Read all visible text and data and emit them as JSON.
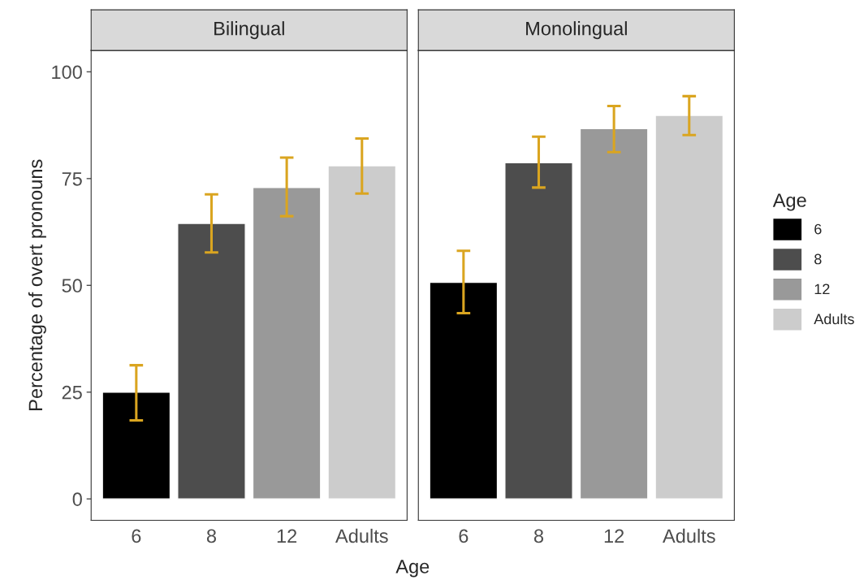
{
  "chart_data": [
    {
      "type": "bar",
      "title": "Bilingual",
      "ylabel": "Percentage of overt pronouns",
      "xlabel": "Age",
      "categories": [
        "6",
        "8",
        "12",
        "Adults"
      ],
      "series": [
        {
          "color": "#000000",
          "values": [
            25,
            null,
            null,
            null
          ],
          "errors": [
            [
              18.4,
              31.3
            ],
            null,
            null,
            null
          ]
        },
        {
          "color": "#4d4d4d",
          "values": [
            null,
            64.5,
            null,
            null
          ],
          "errors": [
            null,
            [
              57.7,
              71.3
            ],
            null,
            null
          ]
        },
        {
          "color": "#999999",
          "values": [
            null,
            null,
            72.9,
            null
          ],
          "errors": [
            null,
            null,
            [
              66.2,
              79.9
            ],
            null
          ]
        },
        {
          "color": "#cccccc",
          "values": [
            null,
            null,
            null,
            78.0
          ],
          "errors": [
            null,
            null,
            null,
            [
              71.5,
              84.4
            ]
          ]
        }
      ],
      "ylim": [
        -5,
        105
      ],
      "yticks": [
        0,
        25,
        50,
        75,
        100
      ]
    },
    {
      "type": "bar",
      "title": "Monolingual",
      "legend_title": "Age",
      "legend": "right",
      "categories": [
        "6",
        "8",
        "12",
        "Adults"
      ],
      "series": [
        {
          "name": "6",
          "color": "#000000",
          "values": [
            50.7,
            null,
            null,
            null
          ],
          "errors": [
            [
              43.5,
              58.1
            ],
            null,
            null,
            null
          ]
        },
        {
          "name": "8",
          "color": "#4d4d4d",
          "values": [
            null,
            78.7,
            null,
            null
          ],
          "errors": [
            null,
            [
              72.9,
              84.8
            ],
            null,
            null
          ]
        },
        {
          "name": "12",
          "color": "#999999",
          "values": [
            null,
            null,
            86.7,
            null
          ],
          "errors": [
            null,
            null,
            [
              81.2,
              92.0
            ],
            null
          ]
        },
        {
          "name": "Adults",
          "color": "#cccccc",
          "values": [
            null,
            null,
            null,
            89.8
          ],
          "errors": [
            null,
            null,
            null,
            [
              85.2,
              94.3
            ]
          ]
        }
      ],
      "ylim": [
        -5,
        105
      ],
      "yticks": [
        0,
        25,
        50,
        75,
        100
      ],
      "tick_labels": "x"
    }
  ]
}
